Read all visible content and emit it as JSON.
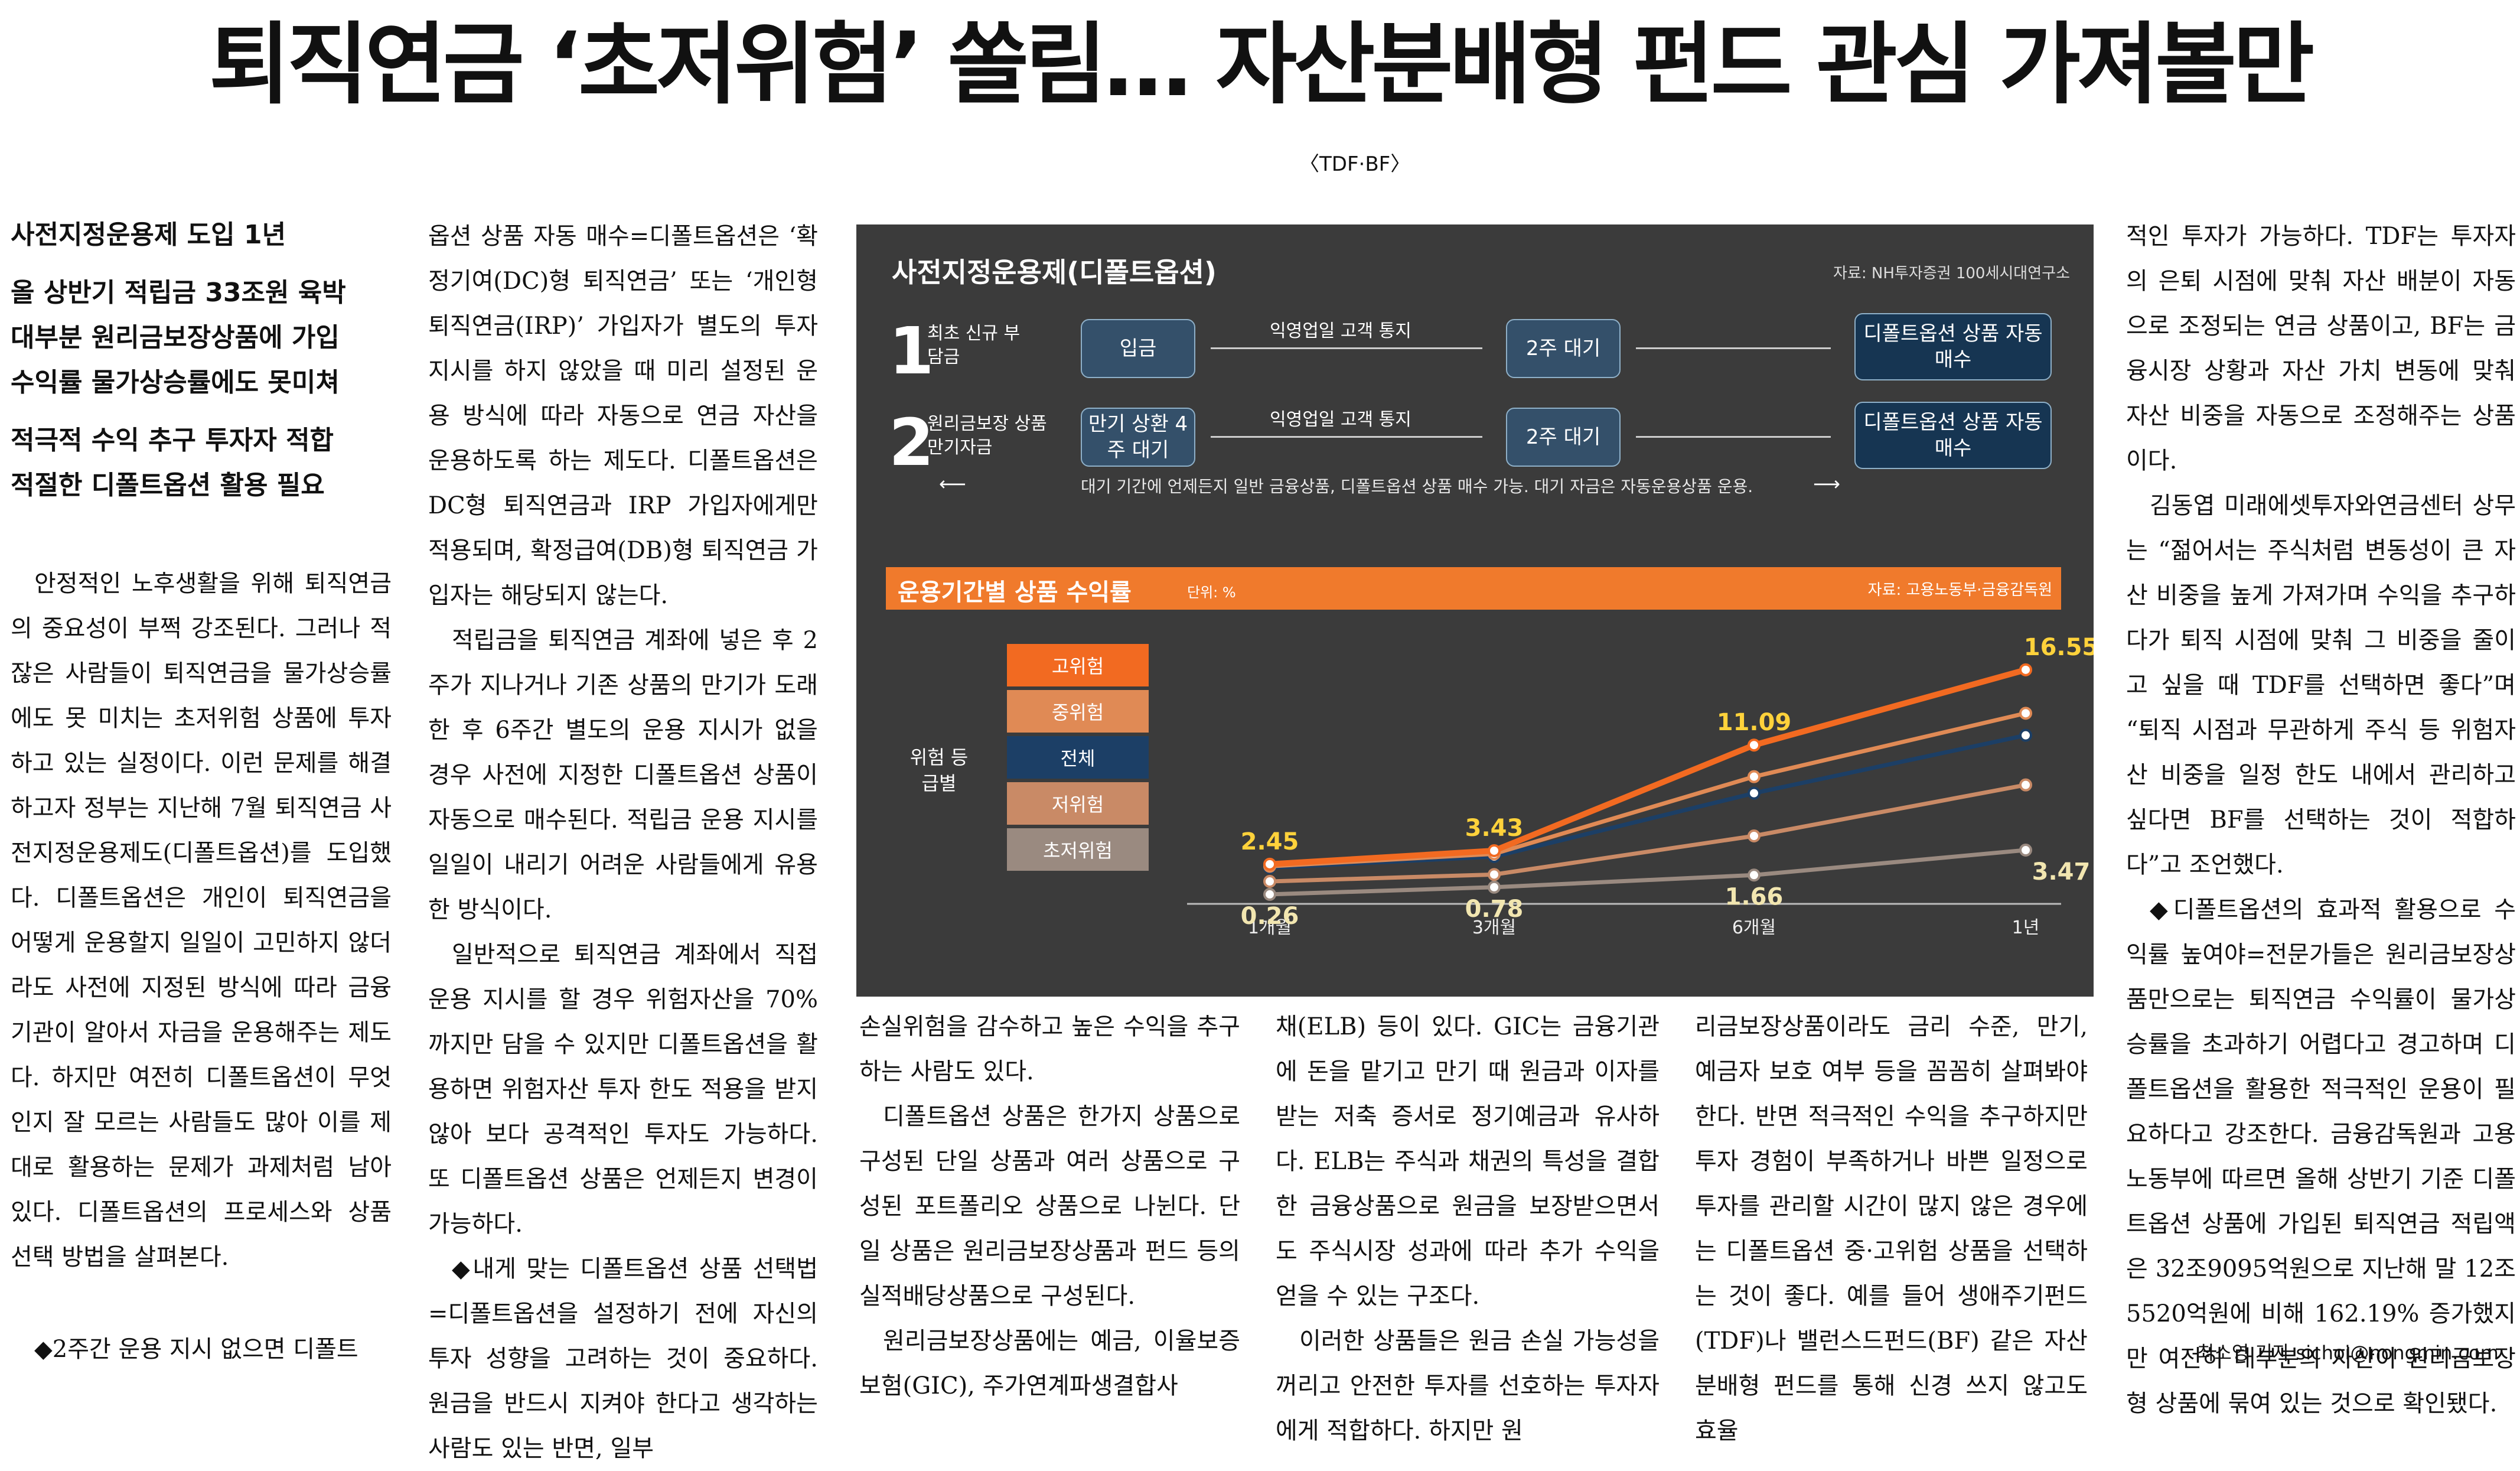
{
  "headline": "퇴직연금 ‘초저위험’ 쏠림… 자산분배형 펀드 관심 가져볼만",
  "tag": "〈TDF·BF〉",
  "subheads": [
    "사전지정운용제 도입 1년",
    "올 상반기 적립금 33조원 육박",
    "대부분 원리금보장상품에 가입",
    "수익률 물가상승률에도 못미쳐",
    "적극적 수익 추구 투자자 적합",
    "적절한 디폴트옵션 활용 필요"
  ],
  "col1_paragraphs": [
    "안정적인 노후생활을 위해 퇴직연금의 중요성이 부쩍 강조된다. 그러나 적잖은 사람들이 퇴직연금을 물가상승률에도 못 미치는 초저위험 상품에 투자하고 있는 실정이다. 이런 문제를 해결하고자 정부는 지난해 7월 퇴직연금 사전지정운용제도(디폴트옵션)를 도입했다. 디폴트옵션은 개인이 퇴직연금을 어떻게 운용할지 일일이 고민하지 않더라도 사전에 지정된 방식에 따라 금융기관이 알아서 자금을 운용해주는 제도다. 하지만 여전히 디폴트옵션이 무엇인지 잘 모르는 사람들도 많아 이를 제대로 활용하는 문제가 과제처럼 남아 있다. 디폴트옵션의 프로세스와 상품 선택 방법을 살펴본다.",
    "◆2주간 운용 지시 없으면 디폴트"
  ],
  "col2_paragraphs": [
    "옵션 상품 자동 매수=디폴트옵션은 ‘확정기여(DC)형 퇴직연금’ 또는 ‘개인형퇴직연금(IRP)’ 가입자가 별도의 투자 지시를 하지 않았을 때 미리 설정된 운용 방식에 따라 자동으로 연금 자산을 운용하도록 하는 제도다. 디폴트옵션은 DC형 퇴직연금과 IRP 가입자에게만 적용되며, 확정급여(DB)형 퇴직연금 가입자는 해당되지 않는다.",
    "적립금을 퇴직연금 계좌에 넣은 후 2주가 지나거나 기존 상품의 만기가 도래한 후 6주간 별도의 운용 지시가 없을 경우 사전에 지정한 디폴트옵션 상품이 자동으로 매수된다. 적립금 운용 지시를 일일이 내리기 어려운 사람들에게 유용한 방식이다.",
    "일반적으로 퇴직연금 계좌에서 직접 운용 지시를 할 경우 위험자산을 70%까지만 담을 수 있지만 디폴트옵션을 활용하면 위험자산 투자 한도 적용을 받지 않아 보다 공격적인 투자도 가능하다. 또 디폴트옵션 상품은 언제든지 변경이 가능하다.",
    "◆내게 맞는 디폴트옵션 상품 선택법=디폴트옵션을 설정하기 전에 자신의 투자 성향을 고려하는 것이 중요하다. 원금을 반드시 지켜야 한다고 생각하는 사람도 있는 반면, 일부"
  ],
  "col3_paragraphs": [
    "손실위험을 감수하고 높은 수익을 추구하는 사람도 있다.",
    "디폴트옵션 상품은 한가지 상품으로 구성된 단일 상품과 여러 상품으로 구성된 포트폴리오 상품으로 나뉜다. 단일 상품은 원리금보장상품과 펀드 등의 실적배당상품으로 구성된다.",
    "원리금보장상품에는 예금, 이율보증보험(GIC), 주가연계파생결합사"
  ],
  "col4_paragraphs": [
    "채(ELB) 등이 있다. GIC는 금융기관에 돈을 맡기고 만기 때 원금과 이자를 받는 저축 증서로 정기예금과 유사하다. ELB는 주식과 채권의 특성을 결합한 금융상품으로 원금을 보장받으면서도 주식시장 성과에 따라 추가 수익을 얻을 수 있는 구조다.",
    "이러한 상품들은 원금 손실 가능성을 꺼리고 안전한 투자를 선호하는 투자자에게 적합하다. 하지만 원"
  ],
  "col5_paragraphs": [
    "리금보장상품이라도 금리 수준, 만기, 예금자 보호 여부 등을 꼼꼼히 살펴봐야 한다. 반면 적극적인 수익을 추구하지만 투자 경험이 부족하거나 바쁜 일정으로 투자를 관리할 시간이 많지 않은 경우에는 디폴트옵션 중·고위험 상품을 선택하는 것이 좋다. 예를 들어 생애주기펀드(TDF)나 밸런스드펀드(BF) 같은 자산 분배형 펀드를 통해 신경 쓰지 않고도 효율"
  ],
  "col6_paragraphs": [
    "적인 투자가 가능하다. TDF는 투자자의 은퇴 시점에 맞춰 자산 배분이 자동으로 조정되는 연금 상품이고, BF는 금융시장 상황과 자산 가치 변동에 맞춰 자산 비중을 자동으로 조정해주는 상품이다.",
    "김동엽 미래에셋투자와연금센터 상무는 “젊어서는 주식처럼 변동성이 큰 자산 비중을 높게 가져가며 수익을 추구하다가 퇴직 시점에 맞춰 그 비중을 줄이고 싶을 때 TDF를 선택하면 좋다”며 “퇴직 시점과 무관하게 주식 등 위험자산 비중을 일정 한도 내에서 관리하고 싶다면 BF를 선택하는 것이 적합하다”고 조언했다.",
    "◆디폴트옵션의 효과적 활용으로 수익률 높여야=전문가들은 원리금보장상품만으로는 퇴직연금 수익률이 물가상승률을 초과하기 어렵다고 경고하며 디폴트옵션을 활용한 적극적인 운용이 필요하다고 강조한다. 금융감독원과 고용노동부에 따르면 올해 상반기 기준 디폴트옵션 상품에 가입된 퇴직연금 적립액은 32조9095억원으로 지난해 말 12조5520억원에 비해 162.19% 증가했지만 여전히 대부분의 자산이 원리금보장형 상품에 묶여 있는 것으로 확인됐다."
  ],
  "byline": "최소영 기자 sichoi@nongmin.com",
  "graphic": {
    "title": "사전지정운용제(디폴트옵션)",
    "source": "자료: NH투자증권 100세시대연구소",
    "rows": [
      {
        "num": "1",
        "label": "최초 신규 부담금",
        "start": "입금",
        "notice": "익영업일 고객 통지",
        "wait": "2주 대기",
        "end": "디폴트옵션 상품 자동매수"
      },
      {
        "num": "2",
        "label": "원리금보장 상품 만기자금",
        "start": "만기 상환 4주 대기",
        "notice": "익영업일 고객 통지",
        "wait": "2주 대기",
        "end": "디폴트옵션 상품 자동매수"
      }
    ],
    "note": "대기 기간에 언제든지 일반 금융상품, 디폴트옵션 상품 매수 가능. 대기 자금은 자동운용상품 운용."
  },
  "chart_data": {
    "type": "line",
    "title": "운용기간별 상품 수익률",
    "unit": "단위: %",
    "source": "자료: 고용노동부·금융감독원",
    "legend_title": "위험 등급별",
    "categories": [
      "1개월",
      "3개월",
      "6개월",
      "1년"
    ],
    "series": [
      {
        "name": "고위험",
        "values": [
          2.45,
          3.43,
          11.09,
          16.55
        ],
        "color": "#f26a21"
      },
      {
        "name": "중위험",
        "values": [
          2.3,
          3.2,
          8.8,
          13.4
        ],
        "color": "#e08a55"
      },
      {
        "name": "전체",
        "values": [
          2.2,
          3.0,
          7.6,
          11.8
        ],
        "color": "#1c3f66"
      },
      {
        "name": "저위험",
        "values": [
          1.2,
          1.7,
          4.5,
          8.2
        ],
        "color": "#c98a66"
      },
      {
        "name": "초저위험",
        "values": [
          0.26,
          0.78,
          1.66,
          3.47
        ],
        "color": "#9a8a80"
      }
    ],
    "labeled_series": [
      {
        "series": "고위험",
        "labels": [
          "2.45",
          "3.43",
          "11.09",
          "16.55"
        ]
      },
      {
        "series": "초저위험",
        "labels": [
          "0.26",
          "0.78",
          "1.66",
          "3.47"
        ]
      }
    ],
    "ylim": [
      0,
      18
    ]
  }
}
